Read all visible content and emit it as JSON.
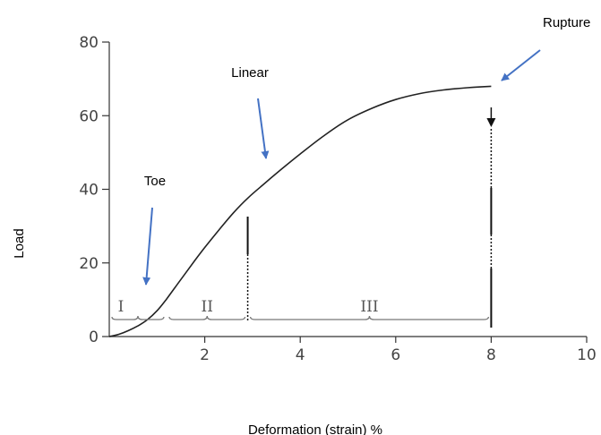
{
  "chart_data": {
    "type": "line",
    "xlabel": "Deformation (strain) %",
    "ylabel": "Load",
    "xlim": [
      0,
      10
    ],
    "ylim": [
      0,
      80
    ],
    "x_ticks": [
      2,
      4,
      6,
      8,
      10
    ],
    "y_ticks": [
      0,
      20,
      40,
      60,
      80
    ],
    "grid": false,
    "series": [
      {
        "x": [
          0,
          0.2,
          0.4,
          0.6,
          0.8,
          1.0,
          1.2,
          1.5,
          1.8,
          2.0,
          2.3,
          2.6,
          2.9,
          3.2,
          3.6,
          4.0,
          4.5,
          5.0,
          5.5,
          6.0,
          6.5,
          7.0,
          7.5,
          8.0
        ],
        "y": [
          0,
          0.6,
          1.6,
          2.9,
          4.6,
          7.0,
          10.2,
          15.5,
          20.8,
          24.2,
          29.0,
          33.6,
          37.6,
          41.0,
          45.4,
          49.6,
          54.6,
          58.9,
          62.0,
          64.4,
          66.0,
          67.0,
          67.6,
          68.0
        ]
      }
    ],
    "boundaries": [
      2.9,
      8.0
    ],
    "regions": [
      {
        "label": "I",
        "x": [
          0,
          1.2
        ]
      },
      {
        "label": "II",
        "x": [
          1.2,
          2.9
        ]
      },
      {
        "label": "III",
        "x": [
          2.9,
          8.0
        ]
      }
    ],
    "annotations": [
      {
        "text": "Toe",
        "target": [
          0.8,
          3
        ]
      },
      {
        "text": "Linear",
        "target": [
          3.2,
          46
        ]
      },
      {
        "text": "Rupture",
        "target": [
          8.3,
          70
        ]
      }
    ],
    "arrow_color": "#4472C4",
    "line_color": "#222222"
  }
}
